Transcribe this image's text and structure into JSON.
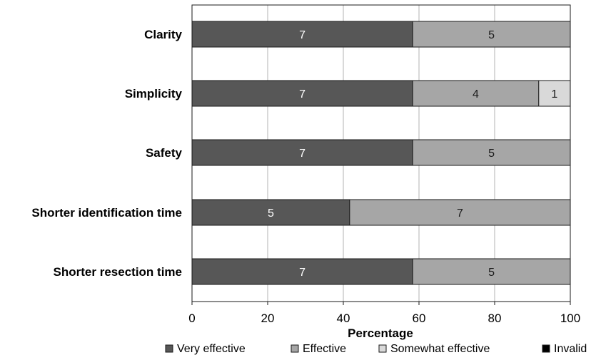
{
  "chart_data": {
    "type": "bar",
    "orientation": "horizontal",
    "stacked": true,
    "categories": [
      "Clarity",
      "Simplicity",
      "Safety",
      "Shorter identification time",
      "Shorter resection time"
    ],
    "series": [
      {
        "name": "Very effective",
        "counts": [
          7,
          7,
          7,
          5,
          7
        ],
        "values": [
          58.33,
          58.33,
          58.33,
          41.67,
          58.33
        ],
        "color": "#575757"
      },
      {
        "name": "Effective",
        "counts": [
          5,
          4,
          5,
          7,
          5
        ],
        "values": [
          41.67,
          33.33,
          41.67,
          58.33,
          41.67
        ],
        "color": "#a6a6a6"
      },
      {
        "name": "Somewhat effective",
        "counts": [
          0,
          1,
          0,
          0,
          0
        ],
        "values": [
          0,
          8.33,
          0,
          0,
          0
        ],
        "color": "#d9d9d9"
      },
      {
        "name": "Invalid",
        "counts": [
          0,
          0,
          0,
          0,
          0
        ],
        "values": [
          0,
          0,
          0,
          0,
          0
        ],
        "color": "#000000"
      }
    ],
    "xlabel": "Percentage",
    "ylabel": "",
    "xlim": [
      0,
      100
    ],
    "xticks": [
      "0",
      "20",
      "40",
      "60",
      "80",
      "100"
    ],
    "grid": true,
    "legend_position": "bottom"
  }
}
